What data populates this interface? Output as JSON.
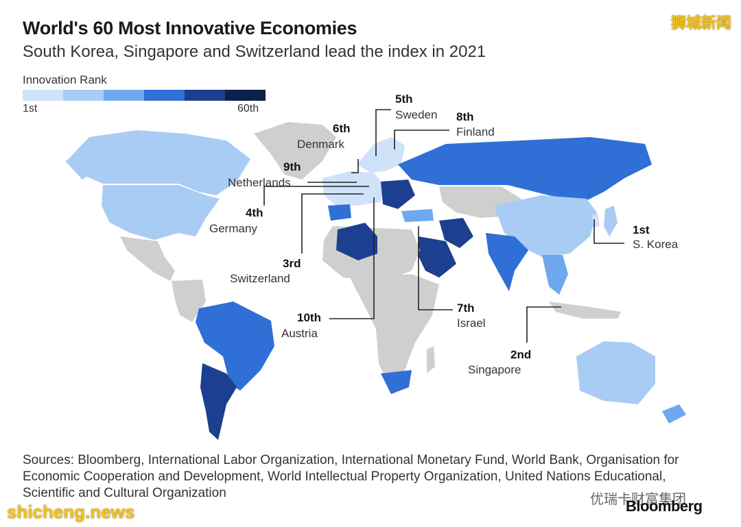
{
  "title": "World's 60 Most Innovative Economies",
  "subtitle": "South Korea, Singapore and Switzerland lead the index in 2021",
  "legend": {
    "title": "Innovation Rank",
    "min_label": "1st",
    "max_label": "60th",
    "colors": [
      "#cfe2fa",
      "#a9ccf5",
      "#6fa8ef",
      "#2f6fd6",
      "#1c3f8f",
      "#0d1f4a"
    ]
  },
  "colors": {
    "no_data": "#cfcfcf",
    "background": "#ffffff"
  },
  "callouts": [
    {
      "rank": "1st",
      "name": "S. Korea"
    },
    {
      "rank": "2nd",
      "name": "Singapore"
    },
    {
      "rank": "3rd",
      "name": "Switzerland"
    },
    {
      "rank": "4th",
      "name": "Germany"
    },
    {
      "rank": "5th",
      "name": "Sweden"
    },
    {
      "rank": "6th",
      "name": "Denmark"
    },
    {
      "rank": "7th",
      "name": "Israel"
    },
    {
      "rank": "8th",
      "name": "Finland"
    },
    {
      "rank": "9th",
      "name": "Netherlands"
    },
    {
      "rank": "10th",
      "name": "Austria"
    }
  ],
  "sources": "Sources: Bloomberg, International Labor Organization, International Monetary Fund, World Bank, Organisation for Economic Cooperation and Development, World Intellectual Property Organization, United Nations Educational, Scientific and Cultural Organization",
  "brand": "Bloomberg",
  "watermarks": {
    "top_right": "狮城新闻",
    "bottom_left": "shicheng.news",
    "bottom_right": "优瑞卡财富集团"
  }
}
